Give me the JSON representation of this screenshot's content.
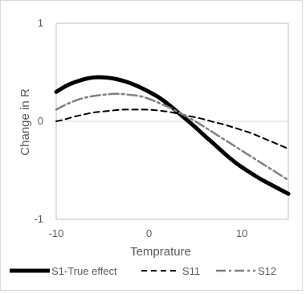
{
  "chart_data": {
    "type": "line",
    "xlabel": "Temprature",
    "ylabel": "Change in R",
    "xlim": [
      -10,
      15
    ],
    "ylim": [
      -1,
      1
    ],
    "x_ticks": [
      -10,
      0,
      10
    ],
    "y_ticks": [
      -1,
      0,
      1
    ],
    "x_tick_labels": [
      "-10",
      "0",
      "10"
    ],
    "y_tick_labels": [
      "-1",
      "0",
      "1"
    ],
    "grid": "horizontal zero line only",
    "legend_position": "bottom",
    "series": [
      {
        "name": "S1-True effect",
        "style": "solid",
        "color": "#000000",
        "x": [
          -10,
          -9,
          -8,
          -7,
          -6,
          -5,
          -4,
          -3,
          -2,
          -1,
          0,
          1,
          2,
          3,
          4,
          5,
          6,
          7,
          8,
          9,
          10,
          11,
          12,
          13,
          14,
          15
        ],
        "y": [
          0.3,
          0.36,
          0.4,
          0.43,
          0.45,
          0.45,
          0.44,
          0.42,
          0.39,
          0.35,
          0.3,
          0.25,
          0.18,
          0.1,
          0.02,
          -0.06,
          -0.15,
          -0.23,
          -0.32,
          -0.4,
          -0.47,
          -0.53,
          -0.59,
          -0.64,
          -0.69,
          -0.74
        ]
      },
      {
        "name": "S11",
        "style": "dashed",
        "color": "#000000",
        "x": [
          -10,
          -9,
          -8,
          -7,
          -6,
          -5,
          -4,
          -3,
          -2,
          -1,
          0,
          1,
          2,
          3,
          4,
          5,
          6,
          7,
          8,
          9,
          10,
          11,
          12,
          13,
          14,
          15
        ],
        "y": [
          0.0,
          0.02,
          0.05,
          0.07,
          0.09,
          0.1,
          0.11,
          0.12,
          0.12,
          0.12,
          0.12,
          0.11,
          0.1,
          0.08,
          0.06,
          0.04,
          0.02,
          -0.01,
          -0.03,
          -0.06,
          -0.09,
          -0.12,
          -0.16,
          -0.2,
          -0.24,
          -0.28
        ]
      },
      {
        "name": "S12",
        "style": "dash-dot",
        "color": "#808080",
        "x": [
          -10,
          -9,
          -8,
          -7,
          -6,
          -5,
          -4,
          -3,
          -2,
          -1,
          0,
          1,
          2,
          3,
          4,
          5,
          6,
          7,
          8,
          9,
          10,
          11,
          12,
          13,
          14,
          15
        ],
        "y": [
          0.12,
          0.17,
          0.21,
          0.24,
          0.26,
          0.27,
          0.28,
          0.28,
          0.27,
          0.26,
          0.23,
          0.19,
          0.15,
          0.1,
          0.05,
          0.0,
          -0.06,
          -0.12,
          -0.18,
          -0.24,
          -0.3,
          -0.36,
          -0.42,
          -0.48,
          -0.54,
          -0.6
        ]
      }
    ]
  }
}
